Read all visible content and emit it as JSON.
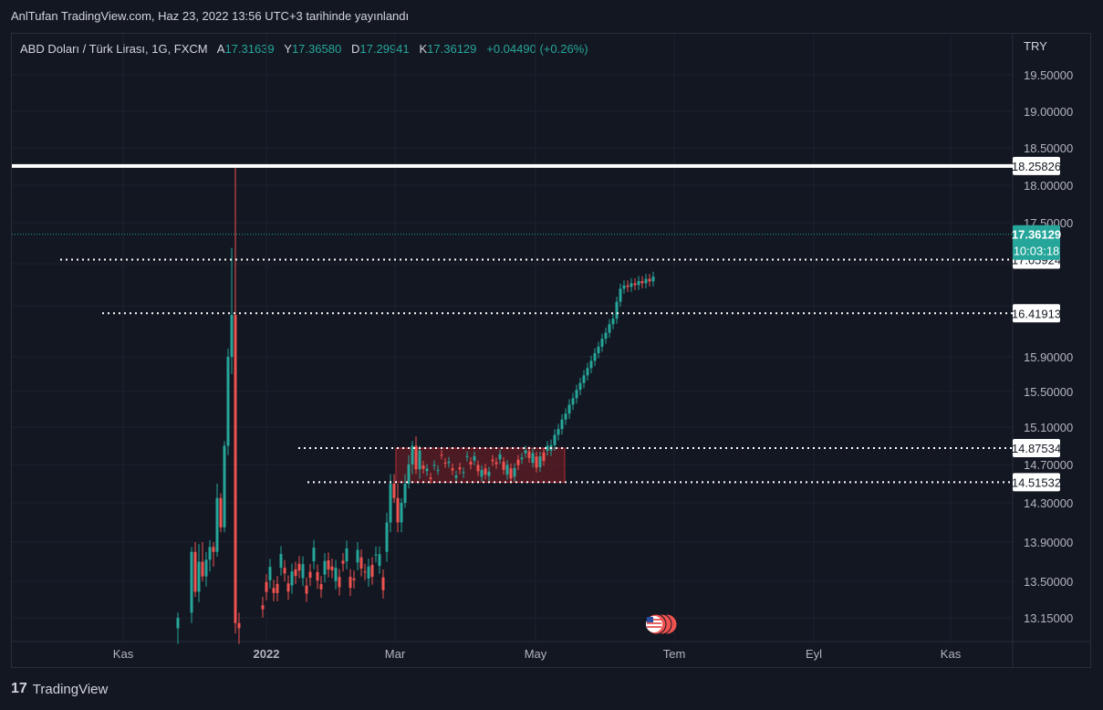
{
  "header": {
    "publish_line": "AnlTufan TradingView.com, Haz 23, 2022 13:56 UTC+3 tarihinde yayınlandı"
  },
  "symbol_info": {
    "name": "ABD Doları / Türk Lirası, 1G, FXCM",
    "open_label": "A",
    "open": "17.31639",
    "high_label": "Y",
    "high": "17.36580",
    "low_label": "D",
    "low": "17.29941",
    "close_label": "K",
    "close": "17.36129",
    "change": "+0.04490 (+0.26%)"
  },
  "currency": "TRY",
  "footer": {
    "brand": "TradingView",
    "logo_text": "17"
  },
  "colors": {
    "up": "#26a69a",
    "down": "#ef5350",
    "background": "#131722",
    "grid": "#1e222d",
    "box_fill": "#7a1d24",
    "box_border": "#b22833"
  },
  "chart_data": {
    "type": "candlestick",
    "y_axis_ticks": [
      "19.50000",
      "19.00000",
      "18.50000",
      "18.00000",
      "17.50000",
      "15.90000",
      "15.50000",
      "15.10000",
      "14.70000",
      "14.30000",
      "13.90000",
      "13.50000",
      "13.15000"
    ],
    "x_axis_ticks": [
      "Kas",
      "2022",
      "Mar",
      "May",
      "Tem",
      "Eyl",
      "Kas"
    ],
    "price_lines": [
      {
        "value": "18.25826",
        "style": "solid"
      },
      {
        "value": "17.05924",
        "style": "dotted"
      },
      {
        "value": "16.41913",
        "style": "dotted"
      },
      {
        "value": "14.87534",
        "style": "dotted"
      },
      {
        "value": "14.51532",
        "style": "dotted"
      }
    ],
    "current_price": {
      "value": "17.36129",
      "countdown": "10:03:18"
    },
    "consolidation_box": {
      "from": "2022-03-01",
      "to": "2022-04-30",
      "high": 14.87534,
      "low": 14.51532
    }
  }
}
